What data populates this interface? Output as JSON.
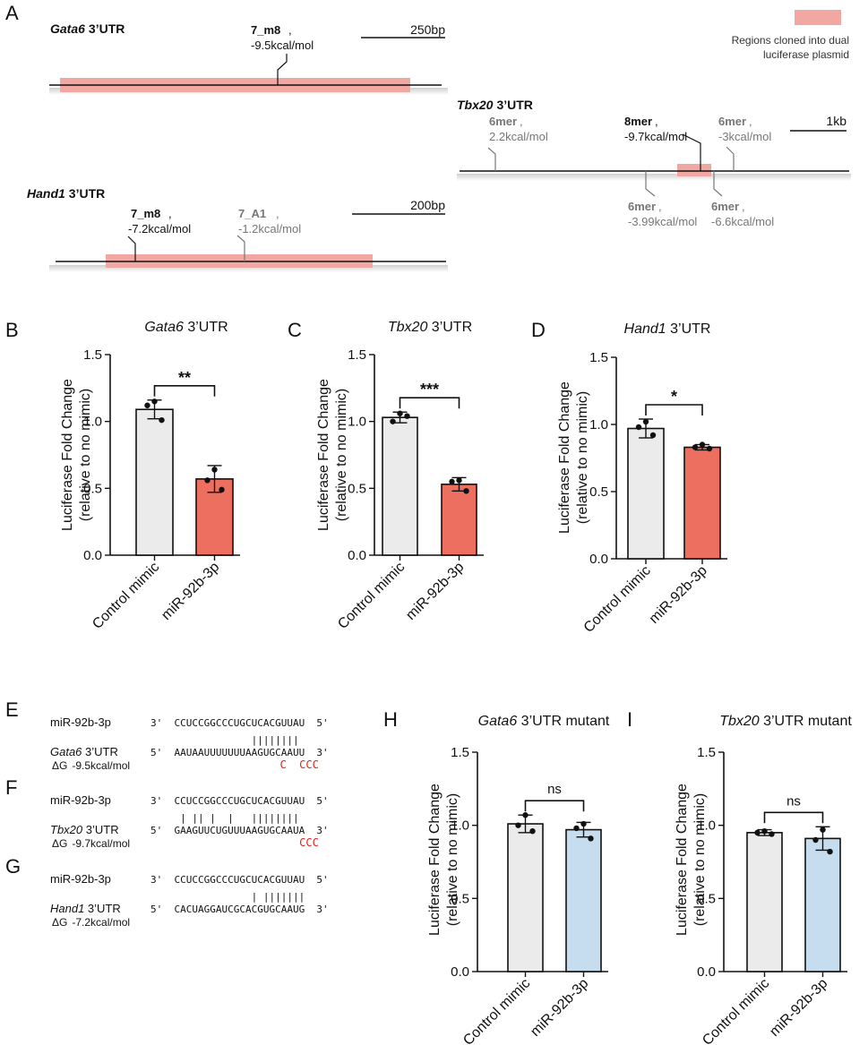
{
  "panel_a": {
    "letter": "A",
    "legend_label": "Regions cloned into dual luciferase plasmid",
    "legend_lines": [
      "Regions cloned into dual",
      "luciferase plasmid"
    ],
    "legend_color": "#f2a8a2",
    "gata6": {
      "gene": "Gata6",
      "utr": "3’UTR",
      "scale": "250bp",
      "sites": [
        {
          "type": "7_m8",
          "energy": "-9.5kcal/mol",
          "bold": true
        }
      ]
    },
    "hand1": {
      "gene": "Hand1",
      "utr": "3’UTR",
      "scale": "200bp",
      "sites": [
        {
          "type": "7_m8",
          "energy": "-7.2kcal/mol",
          "bold": true
        },
        {
          "type": "7_A1",
          "energy": "-1.2kcal/mol",
          "bold": false
        }
      ]
    },
    "tbx20": {
      "gene": "Tbx20",
      "utr": "3’UTR",
      "scale": "1kb",
      "sites": [
        {
          "type": "6mer",
          "energy": "2.2kcal/mol",
          "bold": false
        },
        {
          "type": "8mer",
          "energy": "-9.7kcal/mol",
          "bold": true
        },
        {
          "type": "6mer",
          "energy": "-3kcal/mol",
          "bold": false
        },
        {
          "type": "6mer",
          "energy": "-3.99kcal/mol",
          "bold": false
        },
        {
          "type": "6mer",
          "energy": "-6.6kcal/mol",
          "bold": false
        }
      ]
    }
  },
  "colors": {
    "control": "#ebebeb",
    "mimic": "#ec6f5f",
    "mimic_mutant": "#c6dcef",
    "highlight": "#f2a8a2",
    "mutation": "#e2231a"
  },
  "chart_data": [
    {
      "panel": "B",
      "type": "bar",
      "title_gene": "Gata6",
      "title_rest": " 3’UTR",
      "categories": [
        "Control mimic",
        "miR-92b-3p"
      ],
      "values": [
        1.09,
        0.57
      ],
      "errors": [
        0.07,
        0.1
      ],
      "points": [
        [
          1.15,
          1.12,
          1.01
        ],
        [
          0.64,
          0.56,
          0.49
        ]
      ],
      "significance": "**",
      "ylabel": "Luciferase Fold Change",
      "ylabel2": "(relative to no mimic)",
      "ylim": [
        0,
        1.5
      ],
      "yticks": [
        "0.0",
        "0.5",
        "1.0",
        "1.5"
      ]
    },
    {
      "panel": "C",
      "type": "bar",
      "title_gene": "Tbx20",
      "title_rest": " 3’UTR",
      "categories": [
        "Control mimic",
        "miR-92b-3p"
      ],
      "values": [
        1.03,
        0.53
      ],
      "errors": [
        0.04,
        0.05
      ],
      "points": [
        [
          1.06,
          1.0,
          1.04
        ],
        [
          0.56,
          0.55,
          0.48
        ]
      ],
      "significance": "***",
      "ylabel": "Luciferase Fold Change",
      "ylabel2": "(relative to no mimic)",
      "ylim": [
        0,
        1.5
      ],
      "yticks": [
        "0.0",
        "0.5",
        "1.0",
        "1.5"
      ]
    },
    {
      "panel": "D",
      "type": "bar",
      "title_gene": "Hand1",
      "title_rest": " 3’UTR",
      "categories": [
        "Control mimic",
        "miR-92b-3p"
      ],
      "values": [
        0.97,
        0.83
      ],
      "errors": [
        0.07,
        0.02
      ],
      "points": [
        [
          1.02,
          0.98,
          0.92
        ],
        [
          0.85,
          0.83,
          0.82
        ]
      ],
      "significance": "*",
      "ylabel": "Luciferase Fold Change",
      "ylabel2": "(relative to no mimic)",
      "ylim": [
        0,
        1.5
      ],
      "yticks": [
        "0.0",
        "0.5",
        "1.0",
        "1.5"
      ]
    },
    {
      "panel": "H",
      "type": "bar",
      "title_gene": "Gata6",
      "title_rest": " 3’UTR mutant",
      "categories": [
        "Control mimic",
        "miR-92b-3p"
      ],
      "values": [
        1.01,
        0.97
      ],
      "errors": [
        0.06,
        0.05
      ],
      "points": [
        [
          1.07,
          1.0,
          0.96
        ],
        [
          1.01,
          0.98,
          0.91
        ]
      ],
      "significance": "ns",
      "ylabel": "Luciferase Fold Change",
      "ylabel2": "(relative to no mimic)",
      "ylim": [
        0,
        1.5
      ],
      "yticks": [
        "0.0",
        "0.5",
        "1.0",
        "1.5"
      ]
    },
    {
      "panel": "I",
      "type": "bar",
      "title_gene": "Tbx20",
      "title_rest": " 3’UTR mutant",
      "categories": [
        "Control mimic",
        "miR-92b-3p"
      ],
      "values": [
        0.95,
        0.91
      ],
      "errors": [
        0.02,
        0.08
      ],
      "points": [
        [
          0.96,
          0.95,
          0.94
        ],
        [
          0.97,
          0.9,
          0.82
        ]
      ],
      "significance": "ns",
      "ylabel": "Luciferase Fold Change",
      "ylabel2": "(relative to no mimic)",
      "ylim": [
        0,
        1.5
      ],
      "yticks": [
        "0.0",
        "0.5",
        "1.0",
        "1.5"
      ]
    }
  ],
  "alignments": [
    {
      "panel": "E",
      "mirna_label": "miR-92b-3p",
      "target_gene": "Gata6",
      "target_rest": " 3’UTR",
      "dg_label": "ΔG",
      "dg_value": "-9.5kcal/mol",
      "mirna_seq": "3'  CCUCCGGCCCUGCUCACGUUAU  5'",
      "pairs": "                 ||||||||",
      "target_seq": "5'  AAUAAUUUUUUUAAGUGCAAUU  3'",
      "mutations": "                    C  CCC"
    },
    {
      "panel": "F",
      "mirna_label": "miR-92b-3p",
      "target_gene": "Tbx20",
      "target_rest": " 3’UTR",
      "dg_label": "ΔG",
      "dg_value": "-9.7kcal/mol",
      "mirna_seq": "3'  CCUCCGGCCCUGCUCACGUUAU  5'",
      "pairs": "     | || |  |   ||||||||",
      "target_seq": "5'  GAAGUUCUGUUUAAGUGCAAUA  3'",
      "mutations": "                       CCC"
    },
    {
      "panel": "G",
      "mirna_label": "miR-92b-3p",
      "target_gene": "Hand1",
      "target_rest": " 3’UTR",
      "dg_label": "ΔG",
      "dg_value": "-7.2kcal/mol",
      "mirna_seq": "3'  CCUCCGGCCCUGCUCACGUUAU  5'",
      "pairs": "                 | |||||||",
      "target_seq": "5'  CACUAGGAUCGCACGUGCAAUG  3'",
      "mutations": ""
    }
  ]
}
